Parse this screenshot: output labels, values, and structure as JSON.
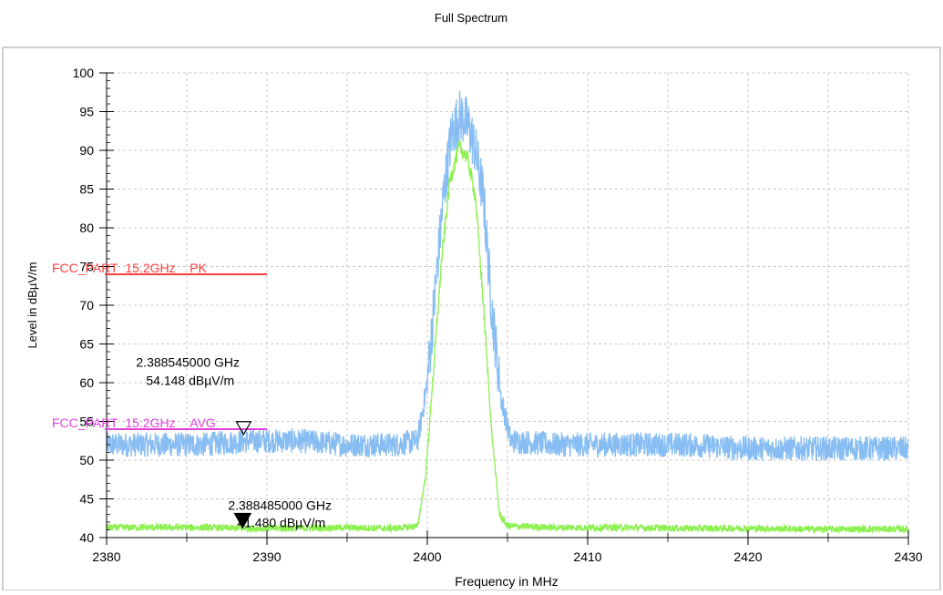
{
  "chart_data": {
    "type": "line",
    "title": "Full Spectrum",
    "xlabel": "Frequency in MHz",
    "ylabel": "Level in dBµV/m",
    "xlim": [
      2380,
      2430
    ],
    "ylim": [
      40,
      100
    ],
    "x_ticks": [
      2380,
      2390,
      2400,
      2410,
      2420,
      2430
    ],
    "y_ticks": [
      40,
      45,
      50,
      55,
      60,
      65,
      70,
      75,
      80,
      85,
      90,
      95,
      100
    ],
    "grid": true,
    "series": [
      {
        "color": "#87bdf2",
        "x": [
          2380,
          2383,
          2386,
          2389,
          2392,
          2395,
          2398,
          2399.4,
          2400.0,
          2400.5,
          2401.0,
          2401.5,
          2402.0,
          2402.3,
          2402.6,
          2403.0,
          2403.5,
          2404.0,
          2404.6,
          2405.2,
          2408,
          2412,
          2416,
          2420,
          2424,
          2428,
          2430
        ],
        "values": [
          52,
          52,
          52,
          52.5,
          52.5,
          52,
          52,
          52.5,
          60,
          72,
          84,
          92,
          94.5,
          94,
          93,
          90,
          84,
          70,
          58,
          52.5,
          52,
          52,
          52,
          51.5,
          51.5,
          51.5,
          51.5
        ]
      },
      {
        "color": "#8cf050",
        "x": [
          2380,
          2383,
          2386,
          2389,
          2392,
          2395,
          2398,
          2399.4,
          2399.9,
          2400.4,
          2400.9,
          2401.4,
          2402.0,
          2402.5,
          2403.0,
          2403.5,
          2404.0,
          2404.5,
          2405.0,
          2408,
          2412,
          2416,
          2420,
          2424,
          2428,
          2430
        ],
        "values": [
          41.3,
          41.3,
          41.3,
          41.2,
          41.2,
          41.3,
          41.2,
          41.5,
          48,
          62,
          76,
          86,
          90.5,
          89,
          84,
          70,
          54,
          43,
          41.5,
          41.3,
          41.3,
          41.2,
          41.2,
          41.1,
          41.1,
          41.1
        ]
      }
    ],
    "limit_lines": [
      {
        "label": "FCC_PART_15.2GHz__PK_",
        "value": 74,
        "x_start": 2380,
        "x_end": 2390,
        "color": "#ff4040"
      },
      {
        "label": "FCC_PART_15.2GHz__AVG_",
        "value": 54,
        "x_start": 2380,
        "x_end": 2390,
        "color": "#e040e0"
      }
    ],
    "markers": [
      {
        "freq_text": "2.388545000 GHz",
        "level_text": "54.148 dBµV/m",
        "x": 2388.545,
        "y": 54.148,
        "style": "hollow-triangle"
      },
      {
        "freq_text": "2.388485000 GHz",
        "level_text": "41.480 dBµV/m",
        "x": 2388.485,
        "y": 41.48,
        "style": "filled-triangle"
      }
    ]
  }
}
